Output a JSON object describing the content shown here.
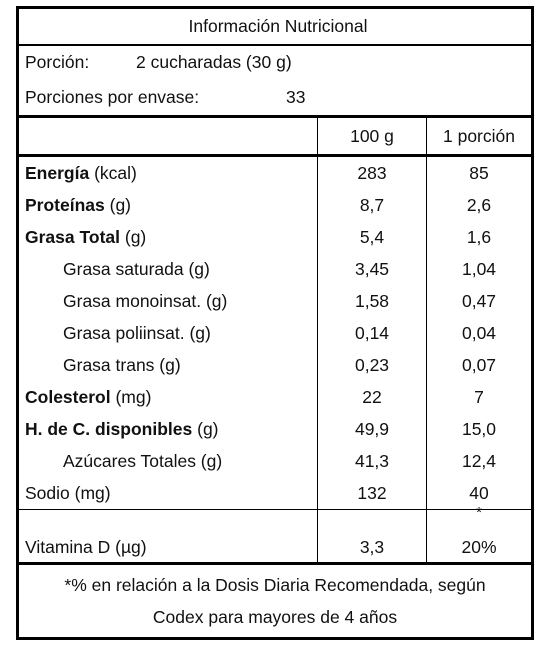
{
  "title": "Información Nutricional",
  "serving": {
    "label": "Porción:",
    "value": "2 cucharadas (30 g)"
  },
  "servings_per_container": {
    "label": "Porciones por envase:",
    "value": "33"
  },
  "table": {
    "columns": [
      "100 g",
      "1 porción"
    ],
    "rows": [
      [
        "Energía",
        "(kcal)",
        "283",
        "85"
      ],
      [
        "Proteínas",
        "(g)",
        "8,7",
        "2,6"
      ],
      [
        "Grasa Total",
        "(g)",
        "5,4",
        "1,6"
      ],
      [
        "Grasa saturada (g)",
        "3,45",
        "1,04"
      ],
      [
        "Grasa monoinsat. (g)",
        "1,58",
        "0,47"
      ],
      [
        "Grasa poliinsat. (g)",
        "0,14",
        "0,04"
      ],
      [
        "Grasa trans (g)",
        "0,23",
        "0,07"
      ],
      [
        "Colesterol",
        "(mg)",
        "22",
        "7"
      ],
      [
        "H. de C. disponibles",
        "(g)",
        "49,9",
        "15,0"
      ],
      [
        "Azúcares Totales (g)",
        "41,3",
        "12,4"
      ],
      [
        "Sodio (mg)",
        "132",
        "40"
      ]
    ]
  },
  "vitamin": {
    "name": "Vitamina D (µg)",
    "per_100g": "3,3",
    "marker": "*",
    "per_portion": "20%"
  },
  "footnote": [
    "*% en relación a la Dosis Diaria Recomendada, según",
    "Codex para mayores de 4 años"
  ]
}
